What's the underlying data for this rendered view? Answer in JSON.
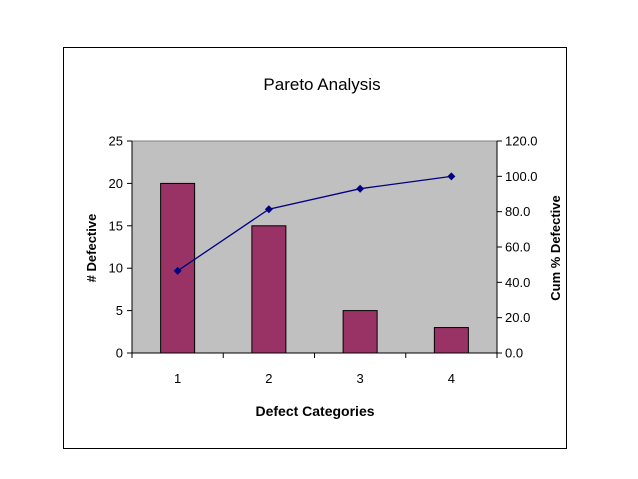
{
  "chart_data": {
    "type": "bar",
    "title": "Pareto Analysis",
    "xlabel": "Defect Categories",
    "ylabel": "# Defective",
    "y2label": "Cum % Defective",
    "categories": [
      "1",
      "2",
      "3",
      "4"
    ],
    "ylim": [
      0,
      25
    ],
    "yticks": [
      "0",
      "5",
      "10",
      "15",
      "20",
      "25"
    ],
    "y2lim": [
      0,
      120
    ],
    "y2ticks": [
      "0.0",
      "20.0",
      "40.0",
      "60.0",
      "80.0",
      "100.0",
      "120.0"
    ],
    "grid": false,
    "legend": "none",
    "series": [
      {
        "type": "bar",
        "axis": "left",
        "values": [
          20,
          15,
          5,
          3
        ]
      },
      {
        "type": "line",
        "axis": "right",
        "values": [
          46.5,
          81.4,
          93.0,
          100.0
        ]
      }
    ]
  },
  "colors": {
    "plot_area": "#c0c0c0",
    "bar_fill": "#993366",
    "line": "#000080"
  }
}
